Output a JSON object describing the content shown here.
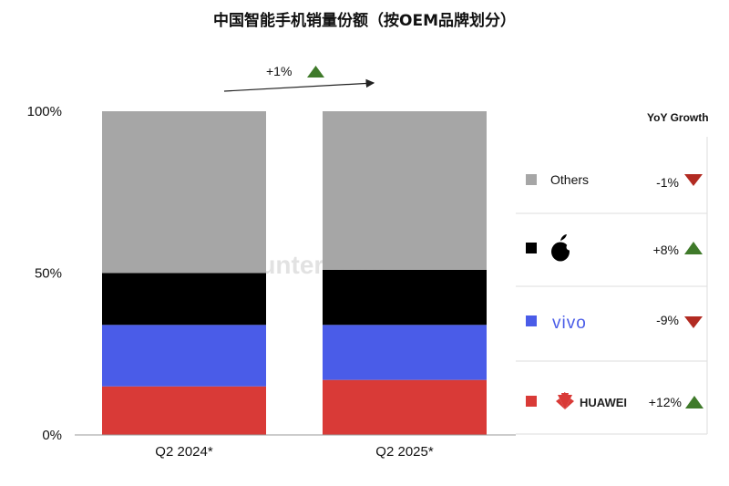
{
  "title": "中国智能手机销量份额（按OEM品牌划分）",
  "watermark": "Counterpoint",
  "total_change": {
    "label": "+1%",
    "direction": "up"
  },
  "legend_header": "YoY Growth",
  "colors": {
    "Others": "#a6a6a6",
    "Apple": "#000000",
    "vivo": "#4a5ce8",
    "HUAWEI": "#d93a37",
    "up": "#3f7a2a",
    "down": "#b22b22"
  },
  "legend": [
    {
      "name": "Others",
      "label": "Others",
      "yoy": "-1%",
      "direction": "down",
      "icon": "swatch"
    },
    {
      "name": "Apple",
      "label": "",
      "yoy": "+8%",
      "direction": "up",
      "icon": "apple-logo-icon"
    },
    {
      "name": "vivo",
      "label": "vivo",
      "yoy": "-9%",
      "direction": "down",
      "icon": "vivo-logo-icon"
    },
    {
      "name": "HUAWEI",
      "label": "HUAWEI",
      "yoy": "+12%",
      "direction": "up",
      "icon": "huawei-logo-icon"
    }
  ],
  "chart_data": {
    "type": "bar",
    "stacked": true,
    "categories": [
      "Q2 2024*",
      "Q2 2025*"
    ],
    "series": [
      {
        "name": "HUAWEI",
        "values": [
          15,
          17
        ]
      },
      {
        "name": "vivo",
        "values": [
          19,
          17
        ]
      },
      {
        "name": "Apple",
        "values": [
          16,
          17
        ]
      },
      {
        "name": "Others",
        "values": [
          50,
          49
        ]
      }
    ],
    "yticks": [
      "0%",
      "50%",
      "100%"
    ],
    "ylim": [
      0,
      100
    ],
    "grid": false,
    "legend_position": "right"
  }
}
